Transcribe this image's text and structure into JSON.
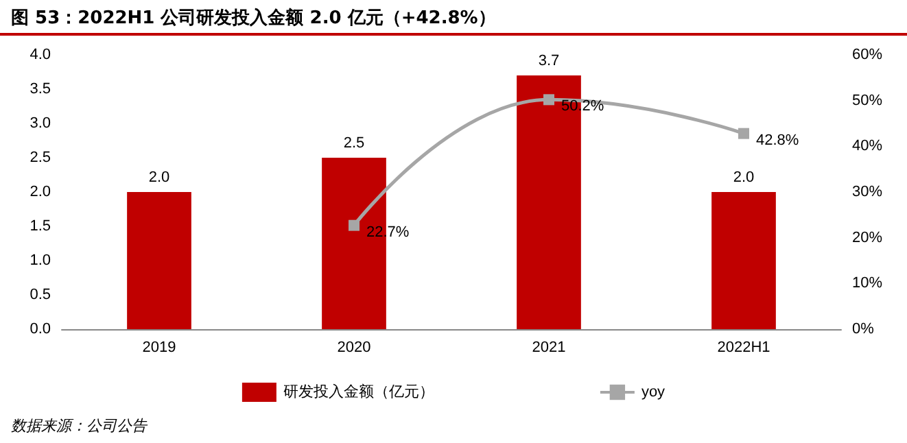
{
  "chart_data": {
    "type": "bar",
    "title": "图 53：2022H1 公司研发投入金额 2.0 亿元（+42.8%）",
    "categories": [
      "2019",
      "2020",
      "2021",
      "2022H1"
    ],
    "series": [
      {
        "name": "研发投入金额（亿元）",
        "color": "#c00000",
        "values": [
          2.0,
          2.5,
          3.7,
          2.0
        ],
        "value_labels": [
          "2.0",
          "2.5",
          "3.7",
          "2.0"
        ]
      },
      {
        "name": "yoy",
        "type": "line",
        "axis": "y2",
        "color": "#a6a6a6",
        "marker": "square",
        "line_style": "solid",
        "values": [
          null,
          22.7,
          50.2,
          42.8
        ],
        "value_labels": [
          null,
          "22.7%",
          "50.2%",
          "42.8%"
        ]
      }
    ],
    "ylim": [
      0,
      4
    ],
    "yticks": [
      {
        "value": 0,
        "label": "0.0"
      },
      {
        "value": 0.5,
        "label": "0.5"
      },
      {
        "value": 1,
        "label": "1.0"
      },
      {
        "value": 1.5,
        "label": "1.5"
      },
      {
        "value": 2,
        "label": "2.0"
      },
      {
        "value": 2.5,
        "label": "2.5"
      },
      {
        "value": 3,
        "label": "3.0"
      },
      {
        "value": 3.5,
        "label": "3.5"
      },
      {
        "value": 4,
        "label": "4.0"
      }
    ],
    "y2lim": [
      0,
      60
    ],
    "y2ticks": [
      {
        "value": 0,
        "label": "0%"
      },
      {
        "value": 10,
        "label": "10%"
      },
      {
        "value": 20,
        "label": "20%"
      },
      {
        "value": 30,
        "label": "30%"
      },
      {
        "value": 40,
        "label": "40%"
      },
      {
        "value": 50,
        "label": "50%"
      },
      {
        "value": 60,
        "label": "60%"
      }
    ],
    "grid": false,
    "legend": "bottom",
    "annotations": [
      "数据来源：公司公告"
    ]
  }
}
